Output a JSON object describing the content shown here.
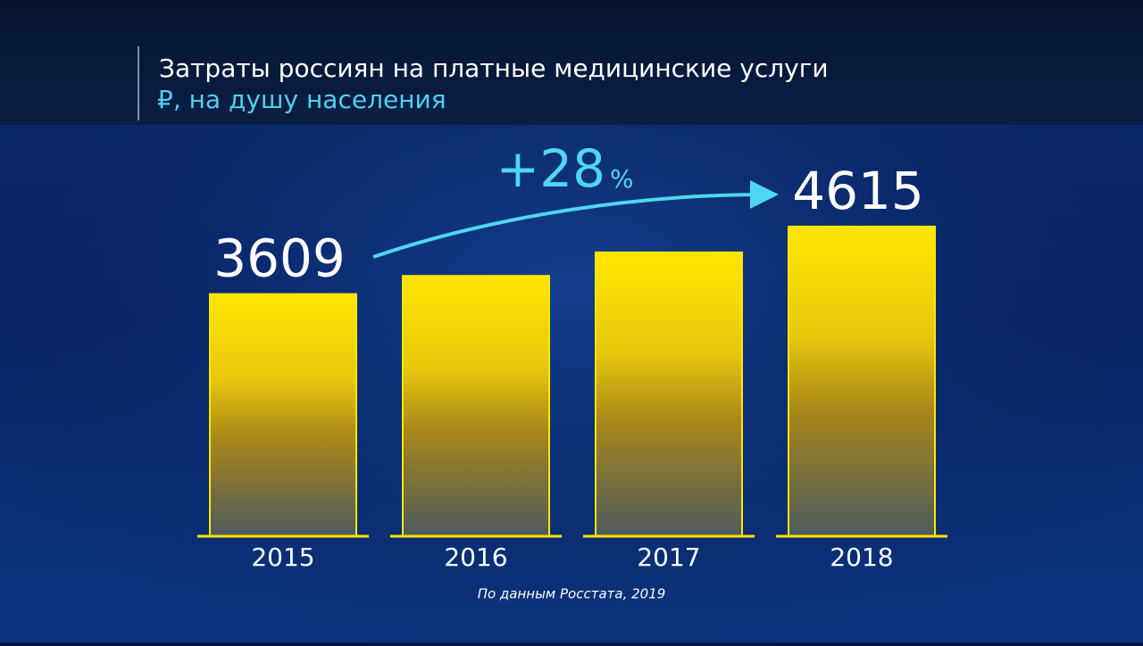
{
  "chart_data": {
    "type": "bar",
    "title": "Затраты россиян на платные медицинские услуги",
    "subtitle": "₽, на душу населения",
    "categories": [
      "2015",
      "2016",
      "2017",
      "2018"
    ],
    "values": [
      3609,
      3880,
      4230,
      4615
    ],
    "value_labels": [
      "3609",
      null,
      null,
      "4615"
    ],
    "color": "#ffe600",
    "ylim": [
      0,
      4800
    ],
    "annotation": {
      "text": "+28",
      "unit": "%"
    },
    "source": "По данным Росстата, 2019"
  }
}
